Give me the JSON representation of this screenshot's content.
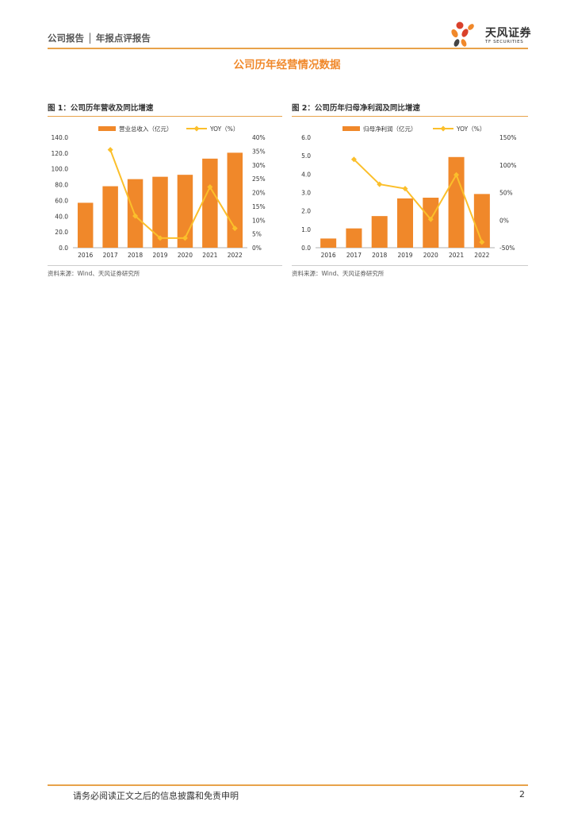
{
  "header": {
    "report_type": "公司报告 │ 年报点评报告",
    "logo_name": "天风证券",
    "logo_sub": "TF SECURITIES"
  },
  "section_title": "公司历年经营情况数据",
  "colors": {
    "bar": "#f0882a",
    "line": "#fbbf2b",
    "accent": "#e8a24a"
  },
  "chart_data": [
    {
      "type": "bar",
      "figure_title": "图 1：公司历年营收及同比增速",
      "source": "资料来源：Wind、天风证券研究所",
      "categories": [
        "2016",
        "2017",
        "2018",
        "2019",
        "2020",
        "2021",
        "2022"
      ],
      "series": [
        {
          "name": "营业总收入（亿元）",
          "type": "bar",
          "axis": "left",
          "values": [
            57.0,
            78.0,
            87.0,
            90.0,
            92.5,
            113.0,
            120.5
          ]
        },
        {
          "name": "YOY（%）",
          "type": "line",
          "axis": "right",
          "values": [
            null,
            35.5,
            11.5,
            3.5,
            3.5,
            22.0,
            7.0
          ]
        }
      ],
      "left_axis": {
        "min": 0,
        "max": 140,
        "step": 20,
        "ticks": [
          "0.0",
          "20.0",
          "40.0",
          "60.0",
          "80.0",
          "100.0",
          "120.0",
          "140.0"
        ]
      },
      "right_axis": {
        "min": 0,
        "max": 40,
        "step": 5,
        "ticks": [
          "0%",
          "5%",
          "10%",
          "15%",
          "20%",
          "25%",
          "30%",
          "35%",
          "40%"
        ]
      },
      "legend_position": "top"
    },
    {
      "type": "bar",
      "figure_title": "图 2：公司历年归母净利润及同比增速",
      "source": "资料来源：Wind、天风证券研究所",
      "categories": [
        "2016",
        "2017",
        "2018",
        "2019",
        "2020",
        "2021",
        "2022"
      ],
      "series": [
        {
          "name": "归母净利润（亿元）",
          "type": "bar",
          "axis": "left",
          "values": [
            0.5,
            1.05,
            1.72,
            2.68,
            2.72,
            4.93,
            2.92
          ]
        },
        {
          "name": "YOY（%）",
          "type": "line",
          "axis": "right",
          "values": [
            null,
            110.0,
            65.0,
            57.0,
            1.5,
            82.0,
            -40.0
          ]
        }
      ],
      "left_axis": {
        "min": 0,
        "max": 6,
        "step": 1,
        "ticks": [
          "0.0",
          "1.0",
          "2.0",
          "3.0",
          "4.0",
          "5.0",
          "6.0"
        ]
      },
      "right_axis": {
        "min": -50,
        "max": 150,
        "step": 50,
        "ticks": [
          "-50%",
          "0%",
          "50%",
          "100%",
          "150%"
        ]
      },
      "legend_position": "top"
    }
  ],
  "footer": {
    "disclaimer": "请务必阅读正文之后的信息披露和免责申明",
    "page_number": "2"
  }
}
